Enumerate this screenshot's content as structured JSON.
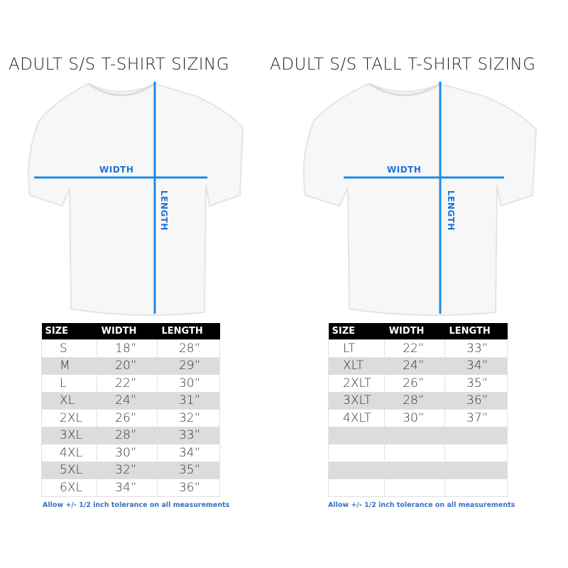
{
  "left": {
    "title": "ADULT S/S T-SHIRT SIZING",
    "width_label": "WIDTH",
    "length_label": "LENGTH",
    "table": {
      "headers": [
        "SIZE",
        "WIDTH",
        "LENGTH"
      ],
      "rows": [
        [
          "S",
          "18”",
          "28”"
        ],
        [
          "M",
          "20”",
          "29”"
        ],
        [
          "L",
          "22”",
          "30”"
        ],
        [
          "XL",
          "24”",
          "31”"
        ],
        [
          "2XL",
          "26”",
          "32”"
        ],
        [
          "3XL",
          "28”",
          "33”"
        ],
        [
          "4XL",
          "30”",
          "34”"
        ],
        [
          "5XL",
          "32”",
          "35”"
        ],
        [
          "6XL",
          "34”",
          "36”"
        ]
      ]
    },
    "note": "Allow +/- 1/2 inch tolerance on all measurements"
  },
  "right": {
    "title": "ADULT S/S TALL T-SHIRT SIZING",
    "width_label": "WIDTH",
    "length_label": "LENGTH",
    "table": {
      "headers": [
        "SIZE",
        "WIDTH",
        "LENGTH"
      ],
      "rows": [
        [
          "LT",
          "22”",
          "33”"
        ],
        [
          "XLT",
          "24”",
          "34”"
        ],
        [
          "2XLT",
          "26”",
          "35”"
        ],
        [
          "3XLT",
          "28”",
          "36”"
        ],
        [
          "4XLT",
          "30”",
          "37”"
        ],
        [
          "",
          "",
          ""
        ],
        [
          "",
          "",
          ""
        ],
        [
          "",
          "",
          ""
        ],
        [
          "",
          "",
          ""
        ]
      ]
    },
    "note": "Allow +/- 1/2 inch tolerance on all measurements"
  },
  "colors": {
    "measure_line": "#1e8ae6",
    "label": "#1e73d8",
    "header_bg": "#000000",
    "alt_row": "#dcdcdc"
  }
}
